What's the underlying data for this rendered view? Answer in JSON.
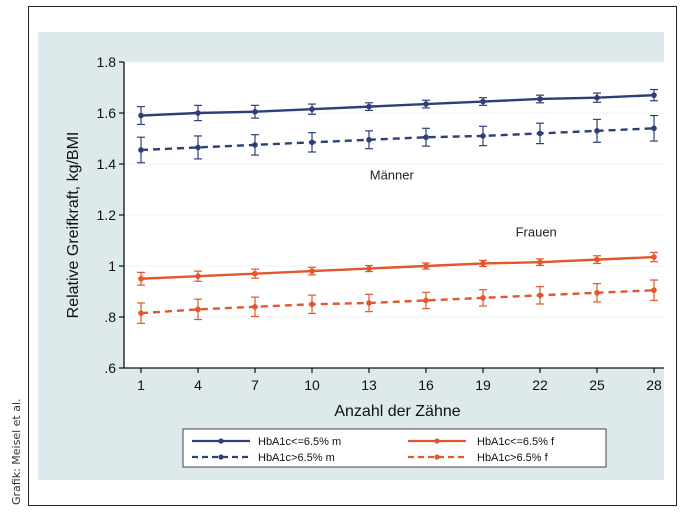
{
  "credit": "Grafik: Meisel et al.",
  "chart_data": {
    "type": "line",
    "xlabel": "Anzahl der Zähne",
    "ylabel": "Relative Greifkraft, kg/BMI",
    "x": [
      1,
      4,
      7,
      10,
      13,
      16,
      19,
      22,
      25,
      28
    ],
    "x_ticks": [
      "1",
      "4",
      "7",
      "10",
      "13",
      "16",
      "19",
      "22",
      "25",
      "28"
    ],
    "ylim": [
      0.6,
      1.8
    ],
    "y_ticks": [
      {
        "value": 1.8,
        "label": "1.8"
      },
      {
        "value": 1.6,
        "label": "1.6"
      },
      {
        "value": 1.4,
        "label": "1.4"
      },
      {
        "value": 1.2,
        "label": "1.2"
      },
      {
        "value": 1.0,
        "label": "1"
      },
      {
        "value": 0.8,
        "label": ".8"
      },
      {
        "value": 0.6,
        "label": ".6"
      }
    ],
    "grid": true,
    "series": [
      {
        "name": "HbA1c<=6.5% m",
        "color": "#2e3f78",
        "dashed": false,
        "values": [
          1.59,
          1.6,
          1.605,
          1.615,
          1.625,
          1.635,
          1.645,
          1.655,
          1.66,
          1.67
        ],
        "err": [
          0.035,
          0.03,
          0.025,
          0.02,
          0.015,
          0.015,
          0.015,
          0.015,
          0.018,
          0.022
        ]
      },
      {
        "name": "HbA1c>6.5% m",
        "color": "#2e3f78",
        "dashed": true,
        "values": [
          1.455,
          1.465,
          1.475,
          1.485,
          1.495,
          1.505,
          1.51,
          1.52,
          1.53,
          1.54
        ],
        "err": [
          0.05,
          0.045,
          0.04,
          0.038,
          0.035,
          0.035,
          0.038,
          0.04,
          0.045,
          0.05
        ]
      },
      {
        "name": "HbA1c<=6.5% f",
        "color": "#e2572c",
        "dashed": false,
        "values": [
          0.95,
          0.96,
          0.97,
          0.98,
          0.99,
          1.0,
          1.01,
          1.015,
          1.025,
          1.035
        ],
        "err": [
          0.025,
          0.02,
          0.018,
          0.015,
          0.012,
          0.012,
          0.012,
          0.013,
          0.015,
          0.018
        ]
      },
      {
        "name": "HbA1c>6.5% f",
        "color": "#e2572c",
        "dashed": true,
        "values": [
          0.815,
          0.83,
          0.84,
          0.85,
          0.855,
          0.865,
          0.875,
          0.885,
          0.895,
          0.905
        ],
        "err": [
          0.04,
          0.04,
          0.038,
          0.036,
          0.034,
          0.032,
          0.032,
          0.034,
          0.036,
          0.04
        ]
      }
    ],
    "annotations": [
      {
        "text": "Männer",
        "x": 14.2,
        "y": 1.34
      },
      {
        "text": "Frauen",
        "x": 21.8,
        "y": 1.115
      }
    ],
    "legend_position": "bottom"
  }
}
